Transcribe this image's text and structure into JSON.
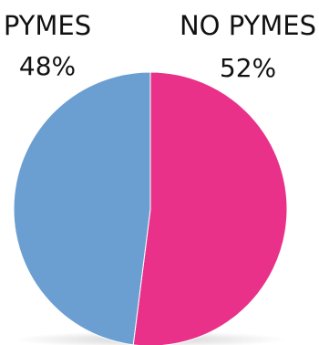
{
  "chart_data": {
    "type": "pie",
    "slices": [
      {
        "label": "NO PYMES",
        "value": 52,
        "value_text": "52%",
        "color": "#E9318A"
      },
      {
        "label": "PYMES",
        "value": 48,
        "value_text": "48%",
        "color": "#6B9FD1"
      }
    ],
    "start": "top",
    "direction": "clockwise",
    "legend": "none"
  }
}
